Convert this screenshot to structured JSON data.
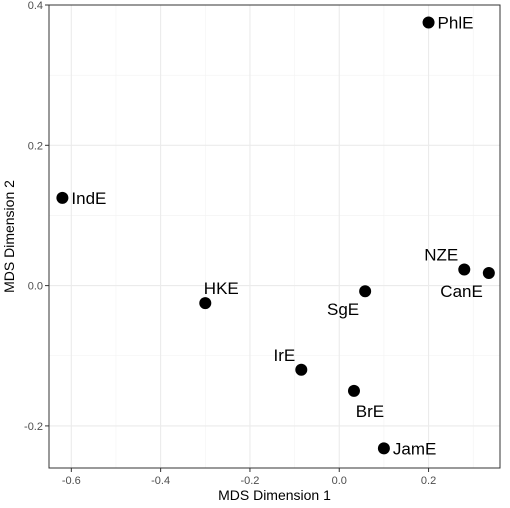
{
  "chart_data": {
    "type": "scatter",
    "title": "",
    "xlabel": "MDS Dimension 1",
    "ylabel": "MDS Dimension 2",
    "xlim": [
      -0.65,
      0.36
    ],
    "ylim": [
      -0.26,
      0.4
    ],
    "x_ticks": [
      -0.6,
      -0.4,
      -0.2,
      0.0,
      0.2
    ],
    "x_tick_labels": [
      "-0.6",
      "-0.4",
      "-0.2",
      "0.0",
      "0.2"
    ],
    "y_ticks": [
      -0.2,
      0.0,
      0.2,
      0.4
    ],
    "y_tick_labels": [
      "-0.2",
      "0.0",
      "0.2",
      "0.4"
    ],
    "grid": true,
    "legend": "none",
    "point_color": "#000000",
    "points": [
      {
        "label": "PhlE",
        "x": 0.2,
        "y": 0.375,
        "label_pos": "right"
      },
      {
        "label": "IndE",
        "x": -0.62,
        "y": 0.125,
        "label_pos": "right"
      },
      {
        "label": "NZE",
        "x": 0.28,
        "y": 0.023,
        "label_pos": "above-left"
      },
      {
        "label": "CanE",
        "x": 0.335,
        "y": 0.018,
        "label_pos": "below-left"
      },
      {
        "label": "HKE",
        "x": -0.3,
        "y": -0.025,
        "label_pos": "above"
      },
      {
        "label": "SgE",
        "x": 0.058,
        "y": -0.008,
        "label_pos": "below-left"
      },
      {
        "label": "IrE",
        "x": -0.085,
        "y": -0.12,
        "label_pos": "above-left"
      },
      {
        "label": "BrE",
        "x": 0.033,
        "y": -0.15,
        "label_pos": "below"
      },
      {
        "label": "JamE",
        "x": 0.1,
        "y": -0.232,
        "label_pos": "right"
      }
    ]
  }
}
